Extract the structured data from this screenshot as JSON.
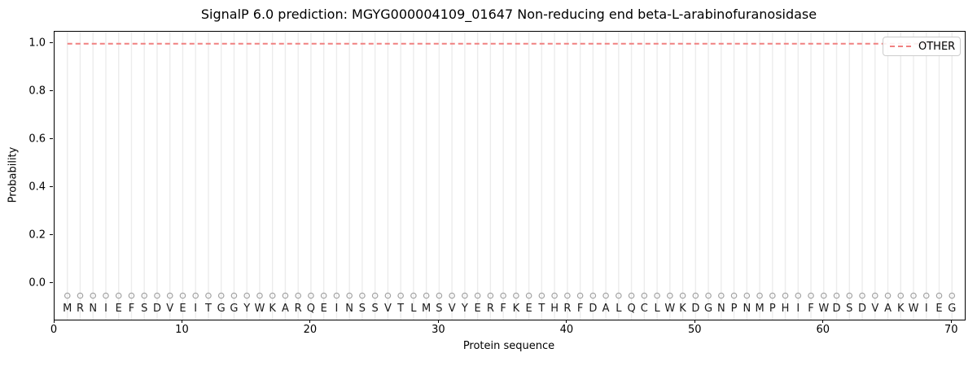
{
  "chart_data": {
    "type": "line",
    "title": "SignalP 6.0 prediction: MGYG000004109_01647 Non-reducing end beta-L-arabinofuranosidase",
    "xlabel": "Protein sequence",
    "ylabel": "Probability",
    "xlim": [
      0,
      71
    ],
    "ylim": [
      -0.15,
      1.05
    ],
    "x_ticks": [
      0,
      10,
      20,
      30,
      40,
      50,
      60,
      70
    ],
    "y_ticks": [
      "0.0",
      "0.2",
      "0.4",
      "0.6",
      "0.8",
      "1.0"
    ],
    "grid": "vertical-per-residue",
    "legend_position": "upper right",
    "sequence": "MRNIEFSDVEITGGYWKARQEINSSVTLMSVYERFKETHRFDALQCLWKDGNPNMPHIFWDSDVAKWIEG",
    "sequence_start": 1,
    "marker_y": -0.05,
    "letter_y": -0.1,
    "series": [
      {
        "name": "OTHER",
        "color": "#f08080",
        "style": "dashed",
        "values": [
          1.0,
          1.0,
          1.0,
          1.0,
          1.0,
          1.0,
          1.0,
          1.0,
          1.0,
          1.0,
          1.0,
          1.0,
          1.0,
          1.0,
          1.0,
          1.0,
          1.0,
          1.0,
          1.0,
          1.0,
          1.0,
          1.0,
          1.0,
          1.0,
          1.0,
          1.0,
          1.0,
          1.0,
          1.0,
          1.0,
          1.0,
          1.0,
          1.0,
          1.0,
          1.0,
          1.0,
          1.0,
          1.0,
          1.0,
          1.0,
          1.0,
          1.0,
          1.0,
          1.0,
          1.0,
          1.0,
          1.0,
          1.0,
          1.0,
          1.0,
          1.0,
          1.0,
          1.0,
          1.0,
          1.0,
          1.0,
          1.0,
          1.0,
          1.0,
          1.0,
          1.0,
          1.0,
          1.0,
          1.0,
          1.0,
          1.0,
          1.0,
          1.0,
          1.0,
          1.0
        ]
      }
    ],
    "colors": {
      "line": "#f08080",
      "grid": "#ececec",
      "marker_stroke": "#a3a3a3",
      "spine": "#000000",
      "text": "#000000",
      "letter": "#1a1a1a",
      "legend_border": "#cccccc"
    }
  }
}
